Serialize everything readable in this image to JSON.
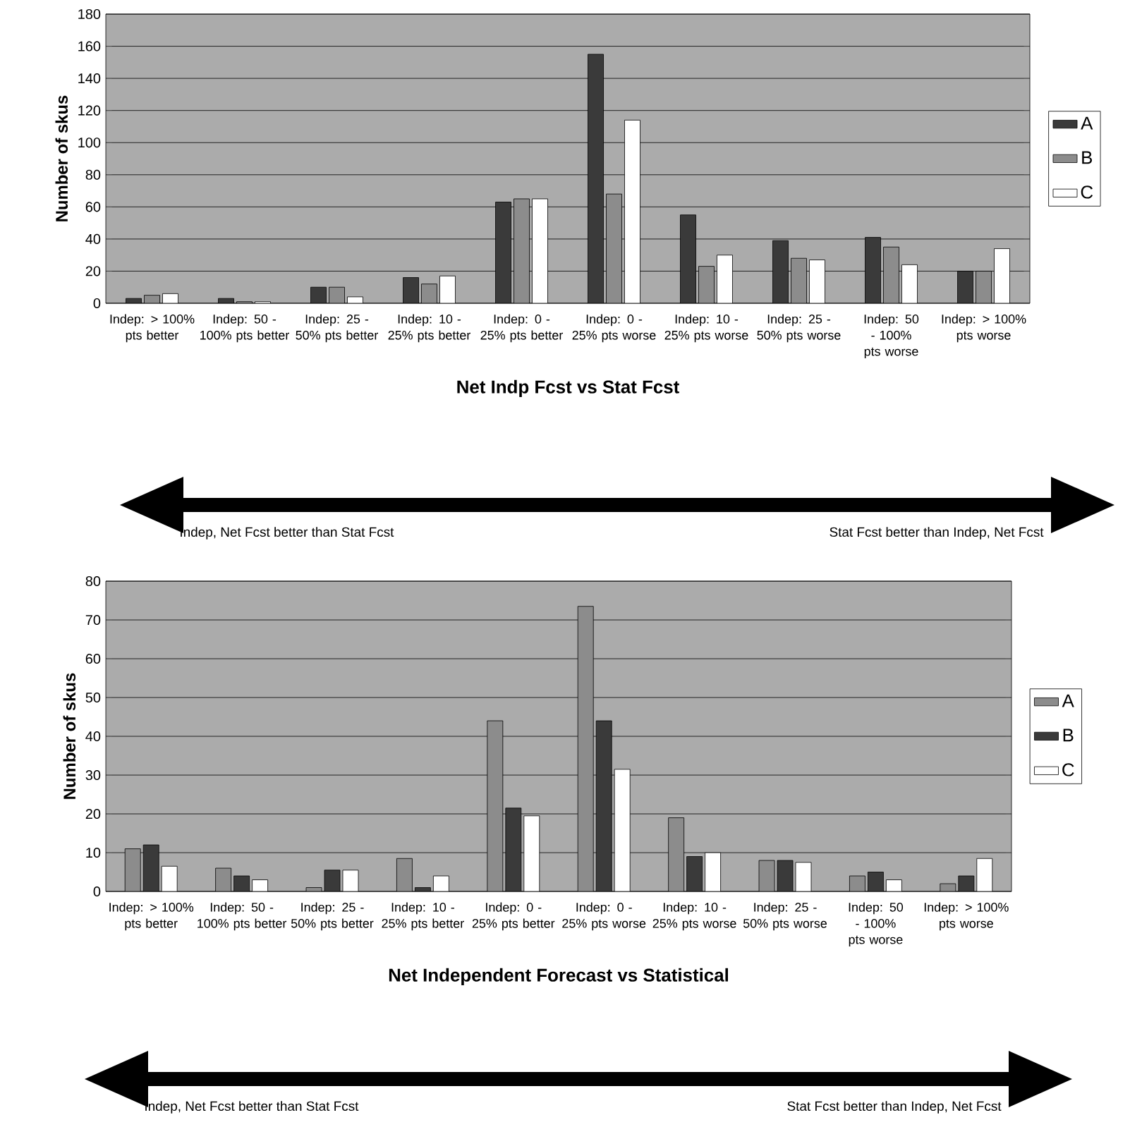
{
  "chart_data": [
    {
      "type": "bar",
      "ylabel": "Number of skus",
      "xlabel": "Net Indp Fcst vs Stat Fcst",
      "categories": [
        "Indep: > 100% pts better",
        "Indep: 50 - 100% pts better",
        "Indep: 25 - 50% pts better",
        "Indep: 10 - 25% pts better",
        "Indep: 0 - 25% pts better",
        "Indep: 0 - 25% pts worse",
        "Indep: 10 - 25% pts worse",
        "Indep: 25 - 50% pts worse",
        "Indep: 50 - 100% pts worse",
        "Indep: > 100% pts worse"
      ],
      "series": [
        {
          "name": "A",
          "color": "#3a3a3a",
          "values": [
            3,
            3,
            10,
            16,
            63,
            155,
            55,
            39,
            41,
            20
          ]
        },
        {
          "name": "B",
          "color": "#8c8c8c",
          "values": [
            5,
            1,
            10,
            12,
            65,
            68,
            23,
            28,
            35,
            20
          ]
        },
        {
          "name": "C",
          "color": "#ffffff",
          "values": [
            6,
            1,
            4,
            17,
            65,
            114,
            30,
            27,
            24,
            34
          ]
        }
      ],
      "ylim": [
        0,
        180
      ],
      "yticks": [
        0,
        20,
        40,
        60,
        80,
        100,
        120,
        140,
        160,
        180
      ],
      "grid": "y",
      "legend": "right",
      "annotations": [
        "Indep, Net Fcst better than Stat Fcst",
        "Stat Fcst better than Indep, Net Fcst"
      ]
    },
    {
      "type": "bar",
      "ylabel": "Number of skus",
      "xlabel": "Net Independent Forecast vs Statistical",
      "categories": [
        "Indep: > 100% pts better",
        "Indep: 50 - 100% pts better",
        "Indep: 25 - 50% pts better",
        "Indep: 10 - 25% pts better",
        "Indep: 0 - 25% pts better",
        "Indep: 0 - 25% pts worse",
        "Indep: 10 - 25% pts worse",
        "Indep: 25 - 50% pts worse",
        "Indep: 50 - 100% pts worse",
        "Indep: > 100% pts worse"
      ],
      "series": [
        {
          "name": "A",
          "color": "#8c8c8c",
          "values": [
            11,
            6,
            1,
            8.5,
            44,
            73.5,
            19,
            8,
            4,
            2
          ]
        },
        {
          "name": "B",
          "color": "#3a3a3a",
          "values": [
            12,
            4,
            5.5,
            1,
            21.5,
            44,
            9,
            8,
            5,
            4
          ]
        },
        {
          "name": "C",
          "color": "#ffffff",
          "values": [
            6.5,
            3,
            5.5,
            4,
            19.5,
            31.5,
            10,
            7.5,
            3,
            8.5
          ]
        }
      ],
      "ylim": [
        0,
        80
      ],
      "yticks": [
        0,
        10,
        20,
        30,
        40,
        50,
        60,
        70,
        80
      ],
      "grid": "y",
      "legend": "right",
      "annotations": [
        "Indep, Net Fcst better than Stat Fcst",
        "Stat Fcst better than Indep, Net Fcst"
      ]
    }
  ]
}
